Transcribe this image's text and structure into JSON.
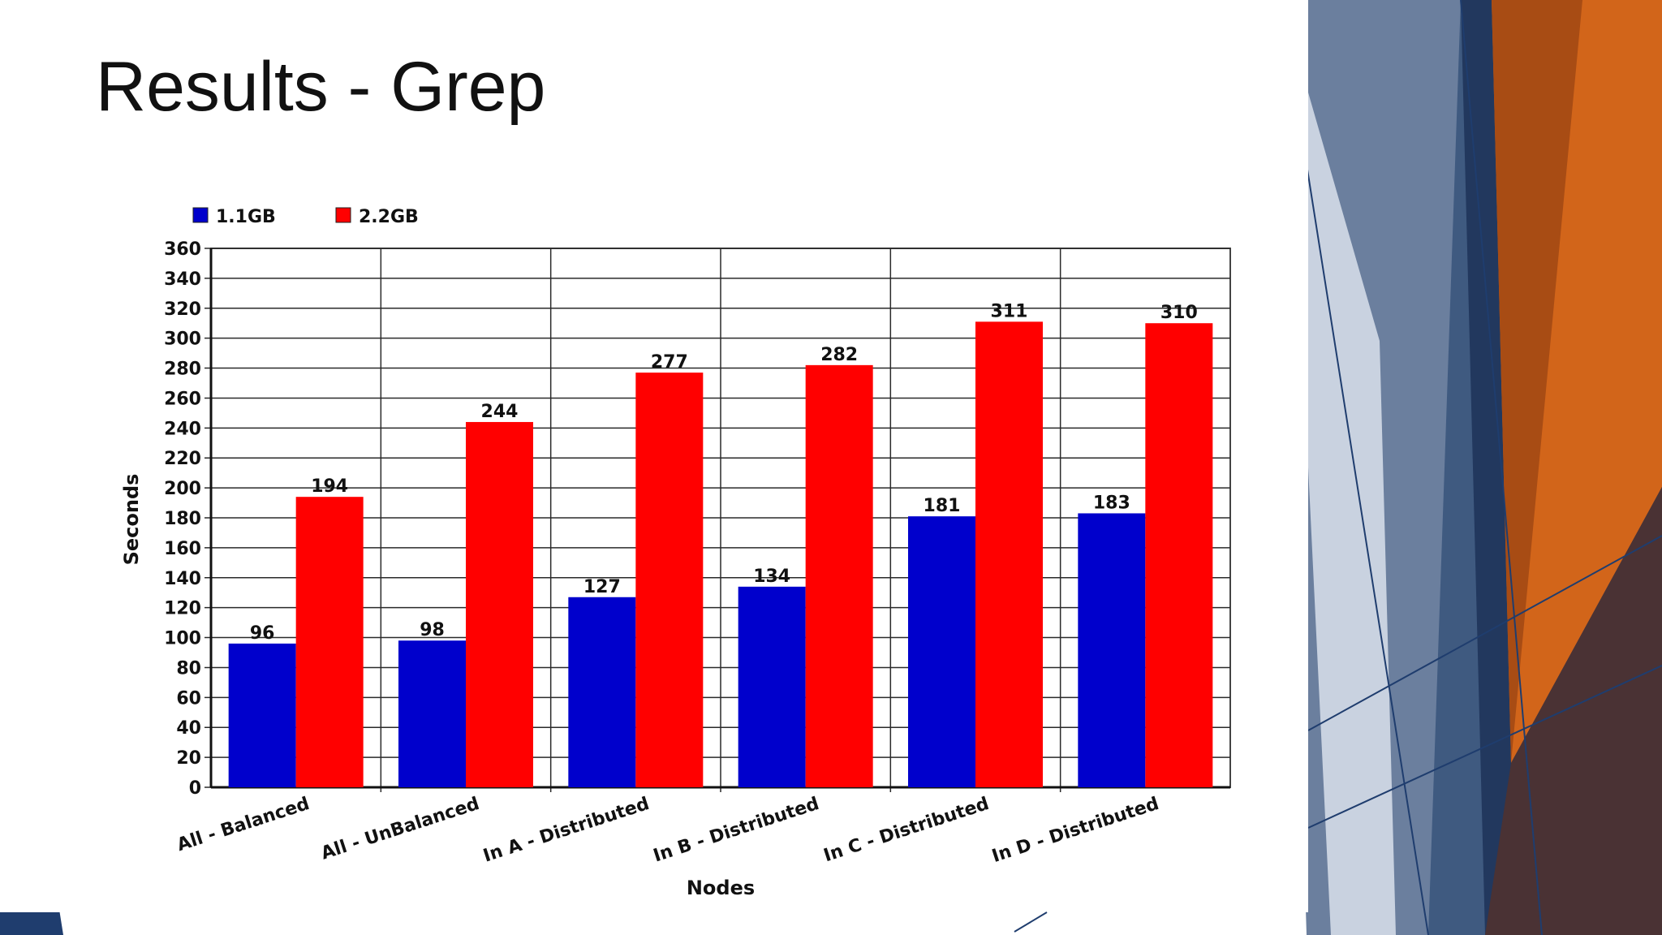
{
  "slide": {
    "title": "Results - Grep"
  },
  "chart_data": {
    "type": "bar",
    "title": "",
    "xlabel": "Nodes",
    "ylabel": "Seconds",
    "ylim": [
      0,
      360
    ],
    "yticks": [
      0,
      20,
      40,
      60,
      80,
      100,
      120,
      140,
      160,
      180,
      200,
      220,
      240,
      260,
      280,
      300,
      320,
      340,
      360
    ],
    "grid": true,
    "legend_position": "top-left",
    "categories": [
      "All - Balanced",
      "All - UnBalanced",
      "In A - Distributed",
      "In B - Distributed",
      "In C - Distributed",
      "In D - Distributed"
    ],
    "series": [
      {
        "name": "1.1GB",
        "color": "#0000cc",
        "values": [
          96,
          98,
          127,
          134,
          181,
          183
        ]
      },
      {
        "name": "2.2GB",
        "color": "#ff0000",
        "values": [
          194,
          244,
          277,
          282,
          311,
          310
        ]
      }
    ]
  }
}
